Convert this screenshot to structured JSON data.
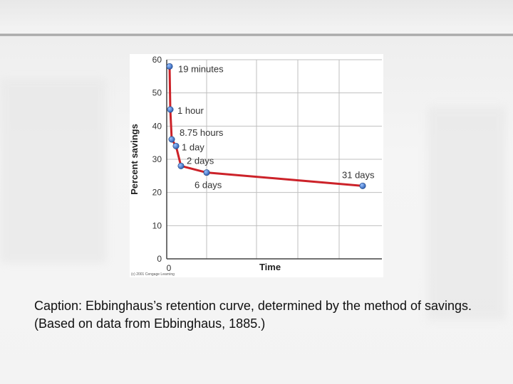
{
  "chart_data": {
    "type": "line",
    "xlabel": "Time",
    "ylabel": "Percent savings",
    "ylim": [
      0,
      60
    ],
    "y_ticks": [
      0,
      10,
      20,
      30,
      40,
      50,
      60
    ],
    "x_ticks": [
      0
    ],
    "grid": true,
    "points": [
      {
        "label": "19 minutes",
        "x": 0.32,
        "y": 58
      },
      {
        "label": "1 hour",
        "x": 1,
        "y": 45
      },
      {
        "label": "8.75 hours",
        "x": 8.75,
        "y": 36
      },
      {
        "label": "1 day",
        "x": 24,
        "y": 34
      },
      {
        "label": "2 days",
        "x": 48,
        "y": 28
      },
      {
        "label": "6 days",
        "x": 144,
        "y": 26
      },
      {
        "label": "31 days",
        "x": 744,
        "y": 22
      }
    ],
    "line_color": "#cc2229",
    "marker_color": "#2e62b5",
    "copyright": "(c) 2001 Cengage Learning"
  },
  "caption": "Caption: Ebbinghaus’s retention curve, determined by the method of savings.  (Based on data from Ebbinghaus, 1885.)"
}
